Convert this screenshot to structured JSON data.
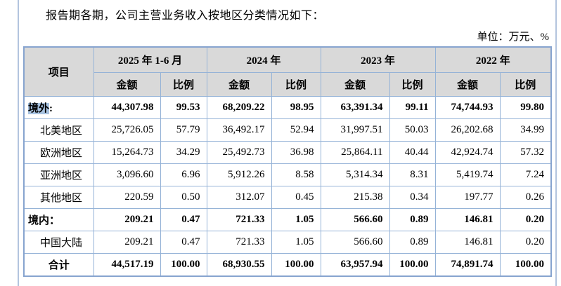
{
  "document": {
    "intro": "报告期各期，公司主营业务收入按地区分类情况如下：",
    "unit_note": "单位：万元、%"
  },
  "colors": {
    "table_border": "#95b3d7",
    "table_outer_border": "#87a4cf",
    "header_bg": "#d9d9d9",
    "selection_highlight": "#a8c3e1",
    "page_edge_line": "#b3c4de"
  },
  "table": {
    "item_header": "项目",
    "amount_header": "金额",
    "ratio_header": "比例",
    "periods": [
      {
        "label": "2025 年 1-6 月"
      },
      {
        "label": "2024 年"
      },
      {
        "label": "2023 年"
      },
      {
        "label": "2022 年"
      }
    ],
    "rows": [
      {
        "label": "境外:",
        "highlight": "境外",
        "bold": true,
        "indent": false,
        "center": false,
        "values": [
          "44,307.98",
          "99.53",
          "68,209.22",
          "98.95",
          "63,391.34",
          "99.11",
          "74,744.93",
          "99.80"
        ]
      },
      {
        "label": "北美地区",
        "bold": false,
        "indent": true,
        "center": false,
        "values": [
          "25,726.05",
          "57.79",
          "36,492.17",
          "52.94",
          "31,997.51",
          "50.03",
          "26,202.68",
          "34.99"
        ]
      },
      {
        "label": "欧洲地区",
        "bold": false,
        "indent": true,
        "center": false,
        "values": [
          "15,264.73",
          "34.29",
          "25,492.73",
          "36.98",
          "25,864.11",
          "40.44",
          "42,924.74",
          "57.32"
        ]
      },
      {
        "label": "亚洲地区",
        "bold": false,
        "indent": true,
        "center": false,
        "values": [
          "3,096.60",
          "6.96",
          "5,912.26",
          "8.58",
          "5,314.34",
          "8.31",
          "5,419.74",
          "7.24"
        ]
      },
      {
        "label": "其他地区",
        "bold": false,
        "indent": true,
        "center": false,
        "values": [
          "220.59",
          "0.50",
          "312.07",
          "0.45",
          "215.38",
          "0.34",
          "197.77",
          "0.26"
        ]
      },
      {
        "label": "境内：",
        "bold": true,
        "indent": false,
        "center": false,
        "values": [
          "209.21",
          "0.47",
          "721.33",
          "1.05",
          "566.60",
          "0.89",
          "146.81",
          "0.20"
        ]
      },
      {
        "label": "中国大陆",
        "bold": false,
        "indent": true,
        "center": false,
        "values": [
          "209.21",
          "0.47",
          "721.33",
          "1.05",
          "566.60",
          "0.89",
          "146.81",
          "0.20"
        ]
      },
      {
        "label": "合计",
        "bold": true,
        "indent": false,
        "center": true,
        "values": [
          "44,517.19",
          "100.00",
          "68,930.55",
          "100.00",
          "63,957.94",
          "100.00",
          "74,891.74",
          "100.00"
        ]
      }
    ]
  }
}
